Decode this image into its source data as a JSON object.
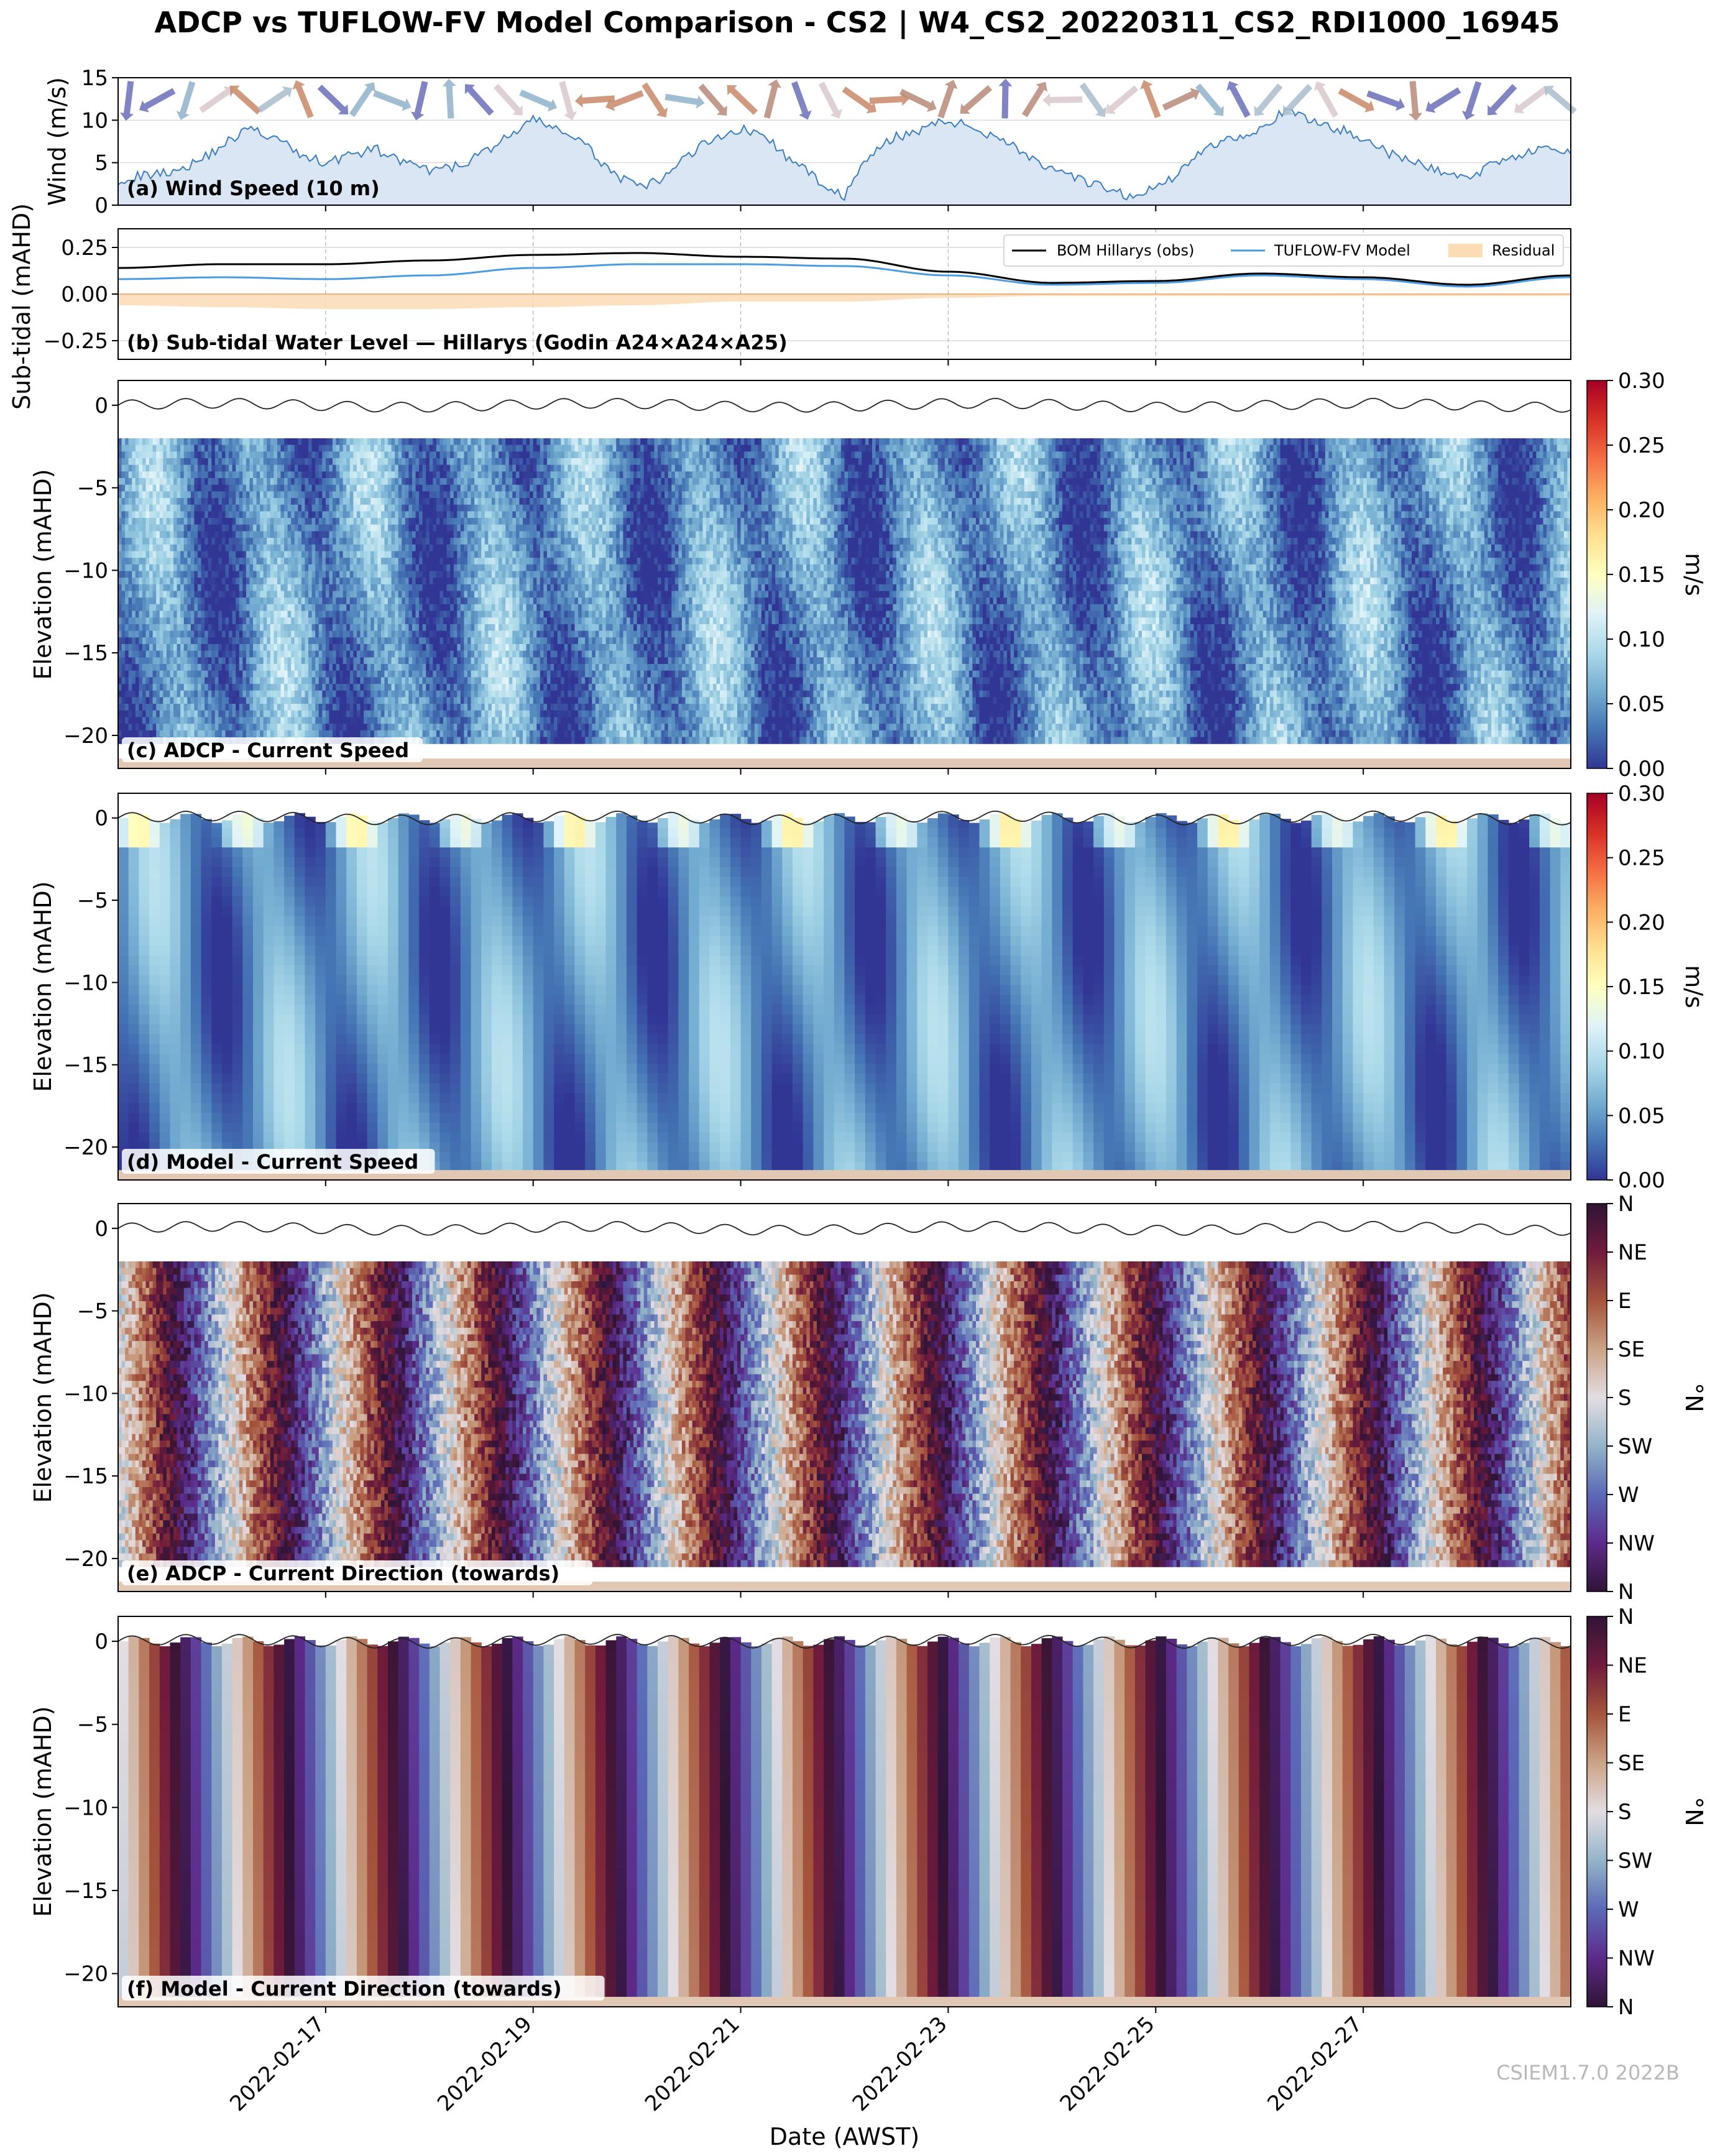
{
  "title": "ADCP vs TUFLOW-FV Model Comparison - CS2 | W4_CS2_20220311_CS2_RDI1000_16945",
  "credit": "CSIEM1.7.0 2022B",
  "colors": {
    "wind_fill": "#dbe6f5",
    "wind_line": "#3a7dc0",
    "obs_line": "#000000",
    "model_line": "#4a9be0",
    "residual_fill": "#fbdcb5",
    "seabed": "#e0c8b4"
  },
  "chart_data": [
    {
      "id": "a",
      "type": "area",
      "label": "(a) Wind Speed (10 m)",
      "ylabel": "Wind (m/s)",
      "ylim": [
        0,
        15
      ],
      "yticks": [
        0,
        5,
        10,
        15
      ],
      "x_unit": "days since 2022-02-15 00:00 AWST",
      "xlim": [
        0,
        14
      ],
      "x": [
        0,
        0.25,
        0.5,
        0.75,
        1,
        1.25,
        1.5,
        1.75,
        2,
        2.25,
        2.5,
        2.75,
        3,
        3.25,
        3.5,
        3.75,
        4,
        4.25,
        4.5,
        4.75,
        5,
        5.25,
        5.5,
        5.75,
        6,
        6.25,
        6.5,
        6.75,
        7,
        7.25,
        7.5,
        7.75,
        8,
        8.25,
        8.5,
        8.75,
        9,
        9.25,
        9.5,
        9.75,
        10,
        10.25,
        10.5,
        10.75,
        11,
        11.25,
        11.5,
        11.75,
        12,
        12.25,
        12.5,
        12.75,
        13,
        13.25,
        13.5,
        13.75,
        14
      ],
      "values": [
        3,
        3.5,
        4,
        5,
        7,
        9,
        8,
        6,
        5,
        6,
        6.5,
        5,
        4,
        4.5,
        6,
        8,
        10,
        9,
        7,
        4,
        2,
        3,
        6,
        8,
        9,
        8,
        5,
        3,
        1,
        6,
        8,
        9,
        10,
        9,
        8,
        6,
        4,
        3,
        2,
        1,
        2,
        4,
        7,
        8,
        9,
        11,
        10,
        9,
        8,
        6,
        5,
        4,
        3,
        5,
        6,
        6.5,
        6
      ],
      "wind_arrows": {
        "note": "wind direction arrows along top of panel",
        "directions_deg": [
          60,
          45,
          30,
          20,
          70,
          100,
          120,
          60,
          40,
          20,
          10,
          350,
          340,
          330,
          300,
          290,
          280,
          270,
          250,
          230,
          210,
          200,
          190,
          180,
          170,
          160,
          150,
          140,
          130,
          120,
          110,
          100,
          90,
          80,
          70,
          60,
          50,
          40,
          30,
          20
        ]
      }
    },
    {
      "id": "b",
      "type": "line",
      "label": "(b) Sub-tidal Water Level — Hillarys (Godin A24×A24×A25)",
      "ylabel": "Sub-tidal (mAHD)",
      "ylim": [
        -0.35,
        0.35
      ],
      "yticks": [
        -0.25,
        0.0,
        0.25
      ],
      "ytick_labels": [
        "−0.25",
        "0.00",
        "0.25"
      ],
      "xlim": [
        0,
        14
      ],
      "x": [
        0,
        1,
        2,
        3,
        4,
        5,
        6,
        7,
        8,
        9,
        10,
        11,
        12,
        13,
        14
      ],
      "series": [
        {
          "name": "BOM Hillarys (obs)",
          "values": [
            0.14,
            0.16,
            0.16,
            0.18,
            0.21,
            0.22,
            0.2,
            0.19,
            0.12,
            0.06,
            0.07,
            0.11,
            0.09,
            0.05,
            0.1
          ]
        },
        {
          "name": "TUFLOW-FV Model",
          "values": [
            0.08,
            0.09,
            0.08,
            0.1,
            0.14,
            0.16,
            0.16,
            0.15,
            0.1,
            0.05,
            0.06,
            0.1,
            0.08,
            0.04,
            0.09
          ]
        },
        {
          "name": "Residual",
          "values": [
            -0.06,
            -0.07,
            -0.08,
            -0.08,
            -0.07,
            -0.06,
            -0.04,
            -0.04,
            -0.02,
            -0.01,
            -0.01,
            -0.01,
            -0.01,
            -0.01,
            -0.01
          ]
        }
      ],
      "legend": [
        "BOM Hillarys (obs)",
        "TUFLOW-FV Model",
        "Residual"
      ],
      "legend_location": "top-right"
    },
    {
      "id": "c",
      "type": "heatmap",
      "label": "(c) ADCP - Current Speed",
      "ylabel": "Elevation (mAHD)",
      "ylim": [
        -22,
        1.5
      ],
      "yticks": [
        0,
        -5,
        -10,
        -15,
        -20
      ],
      "ytick_labels": [
        "0",
        "−5",
        "−10",
        "−15",
        "−20"
      ],
      "data_depth_range": [
        -20.5,
        -2
      ],
      "colorbar": {
        "label": "m/s",
        "range": [
          0,
          0.3
        ],
        "ticks": [
          "0.00",
          "0.05",
          "0.10",
          "0.15",
          "0.20",
          "0.25",
          "0.30"
        ],
        "colormap": "RdYlBu_r"
      },
      "description_values": "current speed field mostly 0.02–0.12 m/s with streaks up to ~0.15"
    },
    {
      "id": "d",
      "type": "heatmap",
      "label": "(d) Model - Current Speed",
      "ylabel": "Elevation (mAHD)",
      "ylim": [
        -22,
        1.5
      ],
      "yticks": [
        0,
        -5,
        -10,
        -15,
        -20
      ],
      "ytick_labels": [
        "0",
        "−5",
        "−10",
        "−15",
        "−20"
      ],
      "data_depth_range": [
        -21.5,
        0
      ],
      "colorbar": {
        "label": "m/s",
        "range": [
          0,
          0.3
        ],
        "ticks": [
          "0.00",
          "0.05",
          "0.10",
          "0.15",
          "0.20",
          "0.25",
          "0.30"
        ],
        "colormap": "RdYlBu_r"
      },
      "description_values": "model speed 0.02–0.15 m/s, surface peaks ~0.3 m/s"
    },
    {
      "id": "e",
      "type": "heatmap",
      "label": "(e) ADCP - Current Direction (towards)",
      "ylabel": "Elevation (mAHD)",
      "ylim": [
        -22,
        1.5
      ],
      "yticks": [
        0,
        -5,
        -10,
        -15,
        -20
      ],
      "ytick_labels": [
        "0",
        "−5",
        "−10",
        "−15",
        "−20"
      ],
      "data_depth_range": [
        -20.5,
        -2
      ],
      "colorbar": {
        "label": "°N",
        "range": [
          0,
          360
        ],
        "ticks": [
          "N",
          "NW",
          "W",
          "SW",
          "S",
          "SE",
          "E",
          "NE",
          "N"
        ],
        "colormap": "twilight_shifted"
      }
    },
    {
      "id": "f",
      "type": "heatmap",
      "label": "(f) Model - Current Direction (towards)",
      "ylabel": "Elevation (mAHD)",
      "ylim": [
        -22,
        1.5
      ],
      "yticks": [
        0,
        -5,
        -10,
        -15,
        -20
      ],
      "ytick_labels": [
        "0",
        "−5",
        "−10",
        "−15",
        "−20"
      ],
      "data_depth_range": [
        -21.5,
        0
      ],
      "colorbar": {
        "label": "°N",
        "range": [
          0,
          360
        ],
        "ticks": [
          "N",
          "NW",
          "W",
          "SW",
          "S",
          "SE",
          "E",
          "NE",
          "N"
        ],
        "colormap": "twilight_shifted"
      }
    }
  ],
  "xaxis": {
    "label": "Date (AWST)",
    "ticks": [
      "2022-02-17",
      "2022-02-19",
      "2022-02-21",
      "2022-02-23",
      "2022-02-25",
      "2022-02-27"
    ],
    "tick_days": [
      2,
      4,
      6,
      8,
      10,
      12
    ]
  }
}
